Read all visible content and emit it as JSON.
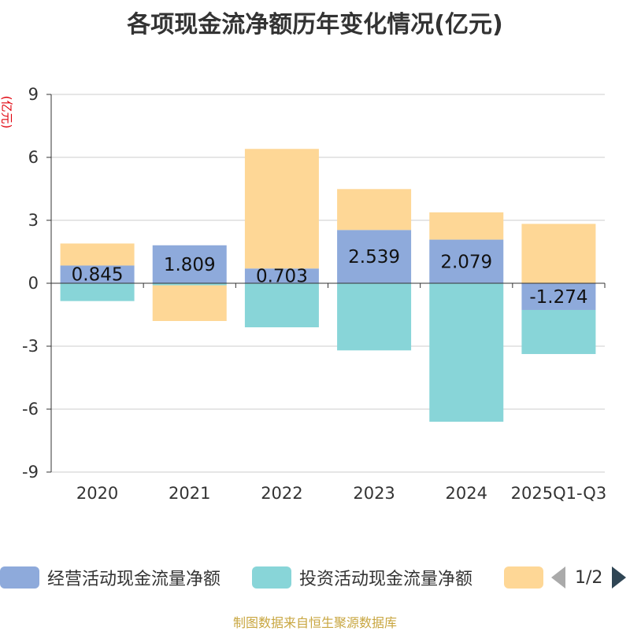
{
  "header": {
    "title": "各项现金流净额历年变化情况(亿元)"
  },
  "chart_data": {
    "type": "bar",
    "stacked": true,
    "title": "各项现金流净额历年变化情况(亿元)",
    "ylabel": "(亿元)",
    "xlabel": "",
    "ylim": [
      -9,
      9
    ],
    "yticks": [
      9,
      6,
      3,
      0,
      -3,
      -6,
      -9
    ],
    "categories": [
      "2020",
      "2021",
      "2022",
      "2023",
      "2024",
      "2025Q1-Q3"
    ],
    "series": [
      {
        "name": "经营活动现金流量净额",
        "color": "#8eaadb",
        "values": [
          0.845,
          1.809,
          0.703,
          2.539,
          2.079,
          -1.274
        ],
        "show_labels": true
      },
      {
        "name": "投资活动现金流量净额",
        "color": "#88d5d8",
        "values": [
          -0.85,
          -0.1,
          -2.1,
          -3.2,
          -6.6,
          -2.1
        ],
        "show_labels": false
      },
      {
        "name": "",
        "color": "#fed796",
        "values": [
          1.05,
          -1.7,
          5.7,
          1.95,
          1.3,
          2.83
        ],
        "show_labels": false
      }
    ],
    "data_labels": [
      "0.845",
      "1.809",
      "0.703",
      "2.539",
      "2.079",
      "-1.274"
    ],
    "grid": true,
    "legend_position": "bottom"
  },
  "legend": {
    "items": [
      {
        "label": "经营活动现金流量净额",
        "color": "#8eaadb"
      },
      {
        "label": "投资活动现金流量净额",
        "color": "#88d5d8"
      },
      {
        "label": "",
        "color": "#fed796"
      }
    ],
    "page_text": "1/2"
  },
  "footer": {
    "source": "制图数据来自恒生聚源数据库"
  }
}
